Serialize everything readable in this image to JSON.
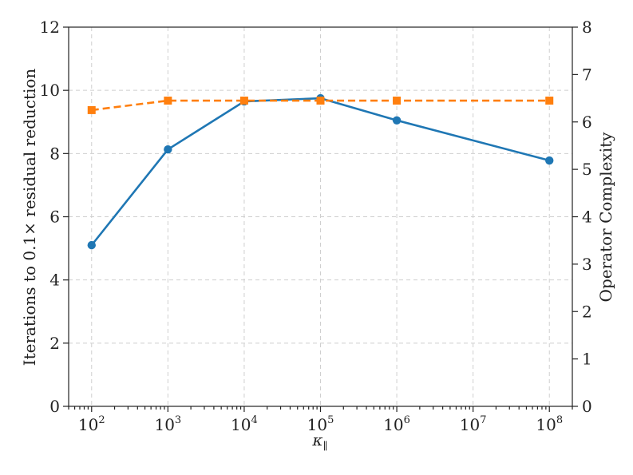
{
  "chart_data": {
    "type": "line",
    "x": [
      100,
      1000,
      10000,
      100000,
      1000000,
      100000000
    ],
    "x_scale": "log",
    "x_exponents": [
      2,
      3,
      4,
      5,
      6,
      7,
      8
    ],
    "xlim": [
      50,
      200000000
    ],
    "xlabel": "κ∥",
    "xlabel_main": "κ",
    "xlabel_sub": "∥",
    "y_left": {
      "label": "Iterations to 0.1× residual reduction",
      "ylim": [
        0,
        12
      ],
      "ticks": [
        "0",
        "2",
        "4",
        "6",
        "8",
        "10",
        "12"
      ]
    },
    "y_right": {
      "label": "Operator Complexity",
      "ylim": [
        0,
        8
      ],
      "ticks": [
        "0",
        "1",
        "2",
        "3",
        "4",
        "5",
        "6",
        "7",
        "8"
      ]
    },
    "grid": true,
    "series": [
      {
        "axis": "left",
        "color": "#1f77b4",
        "marker": "circle",
        "line_style": "solid",
        "values": [
          5.1,
          8.13,
          9.65,
          9.75,
          9.05,
          7.78
        ]
      },
      {
        "axis": "right",
        "color": "#ff7f0e",
        "marker": "square",
        "line_style": "dashed",
        "values": [
          6.25,
          6.45,
          6.45,
          6.45,
          6.45,
          6.45
        ]
      }
    ]
  }
}
